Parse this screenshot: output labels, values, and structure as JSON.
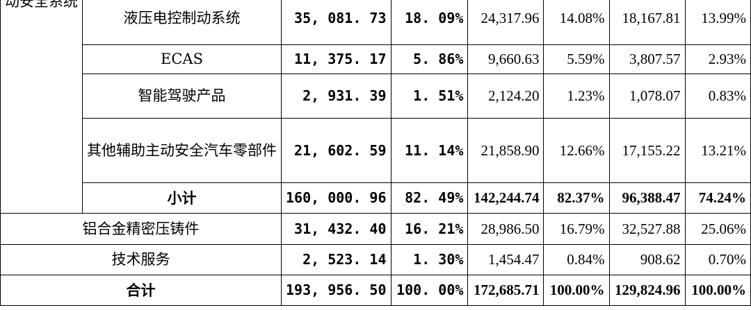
{
  "rows": [
    {
      "label": "液压电控制动系统",
      "v1": "35, 081. 73",
      "p1": "18. 09%",
      "v2": "24,317.96",
      "p2": "14.08%",
      "v3": "18,167.81",
      "p3": "13.99%"
    },
    {
      "label": "ECAS",
      "v1": "11, 375. 17",
      "p1": "5. 86%",
      "v2": "9,660.63",
      "p2": "5.59%",
      "v3": "3,807.57",
      "p3": "2.93%"
    },
    {
      "label": "智能驾驶产品",
      "v1": "2, 931. 39",
      "p1": "1. 51%",
      "v2": "2,124.20",
      "p2": "1.23%",
      "v3": "1,078.07",
      "p3": "0.83%"
    },
    {
      "label": "其他辅助主动安全汽车零部件",
      "v1": "21, 602. 59",
      "p1": "11. 14%",
      "v2": "21,858.90",
      "p2": "12.66%",
      "v3": "17,155.22",
      "p3": "13.21%"
    },
    {
      "label": "小计",
      "v1": "160, 000. 96",
      "p1": "82. 49%",
      "v2": "142,244.74",
      "p2": "82.37%",
      "v3": "96,388.47",
      "p3": "74.24%"
    },
    {
      "label": "铝合金精密压铸件",
      "v1": "31, 432. 40",
      "p1": "16. 21%",
      "v2": "28,986.50",
      "p2": "16.79%",
      "v3": "32,527.88",
      "p3": "25.06%"
    },
    {
      "label": "技术服务",
      "v1": "2, 523. 14",
      "p1": "1. 30%",
      "v2": "1,454.47",
      "p2": "0.84%",
      "v3": "908.62",
      "p3": "0.70%"
    },
    {
      "label": "合计",
      "v1": "193, 956. 50",
      "p1": "100. 00%",
      "v2": "172,685.71",
      "p2": "100.00%",
      "v3": "129,824.96",
      "p3": "100.00%"
    }
  ],
  "category": "动安全系统"
}
